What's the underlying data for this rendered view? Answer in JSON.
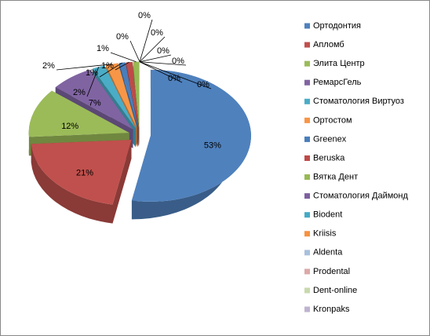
{
  "chart_data": {
    "type": "pie",
    "categories": [
      "Ортодонтия",
      "Апломб",
      "Элита Центр",
      "РемарсГель",
      "Стоматология Виртуоз",
      "Ортостом",
      "Greenex",
      "Beruska",
      "Вятка Дент",
      "Стоматология Даймонд",
      "Biodent",
      "Kriisis",
      "Aldenta",
      "Prodental",
      "Dent-online",
      "Kronpaks"
    ],
    "values": [
      53,
      21,
      12,
      7,
      2,
      2,
      1,
      1,
      1,
      0,
      0,
      0,
      0,
      0,
      0,
      0
    ],
    "value_labels": [
      "53%",
      "21%",
      "12%",
      "7%",
      "2%",
      "2%",
      "1%",
      "1%",
      "1%",
      "0%",
      "0%",
      "0%",
      "0%",
      "0%",
      "0%",
      "0%"
    ],
    "colors": [
      "#4f81bd",
      "#c0504d",
      "#9bbb59",
      "#8064a2",
      "#4bacc6",
      "#f79646",
      "#4a7ebb",
      "#be4b48",
      "#98b954",
      "#7d60a0",
      "#46aac5",
      "#f69240",
      "#a9c0dd",
      "#dba9a8",
      "#c8d9ad",
      "#bfb3d0"
    ],
    "legend": "right"
  }
}
